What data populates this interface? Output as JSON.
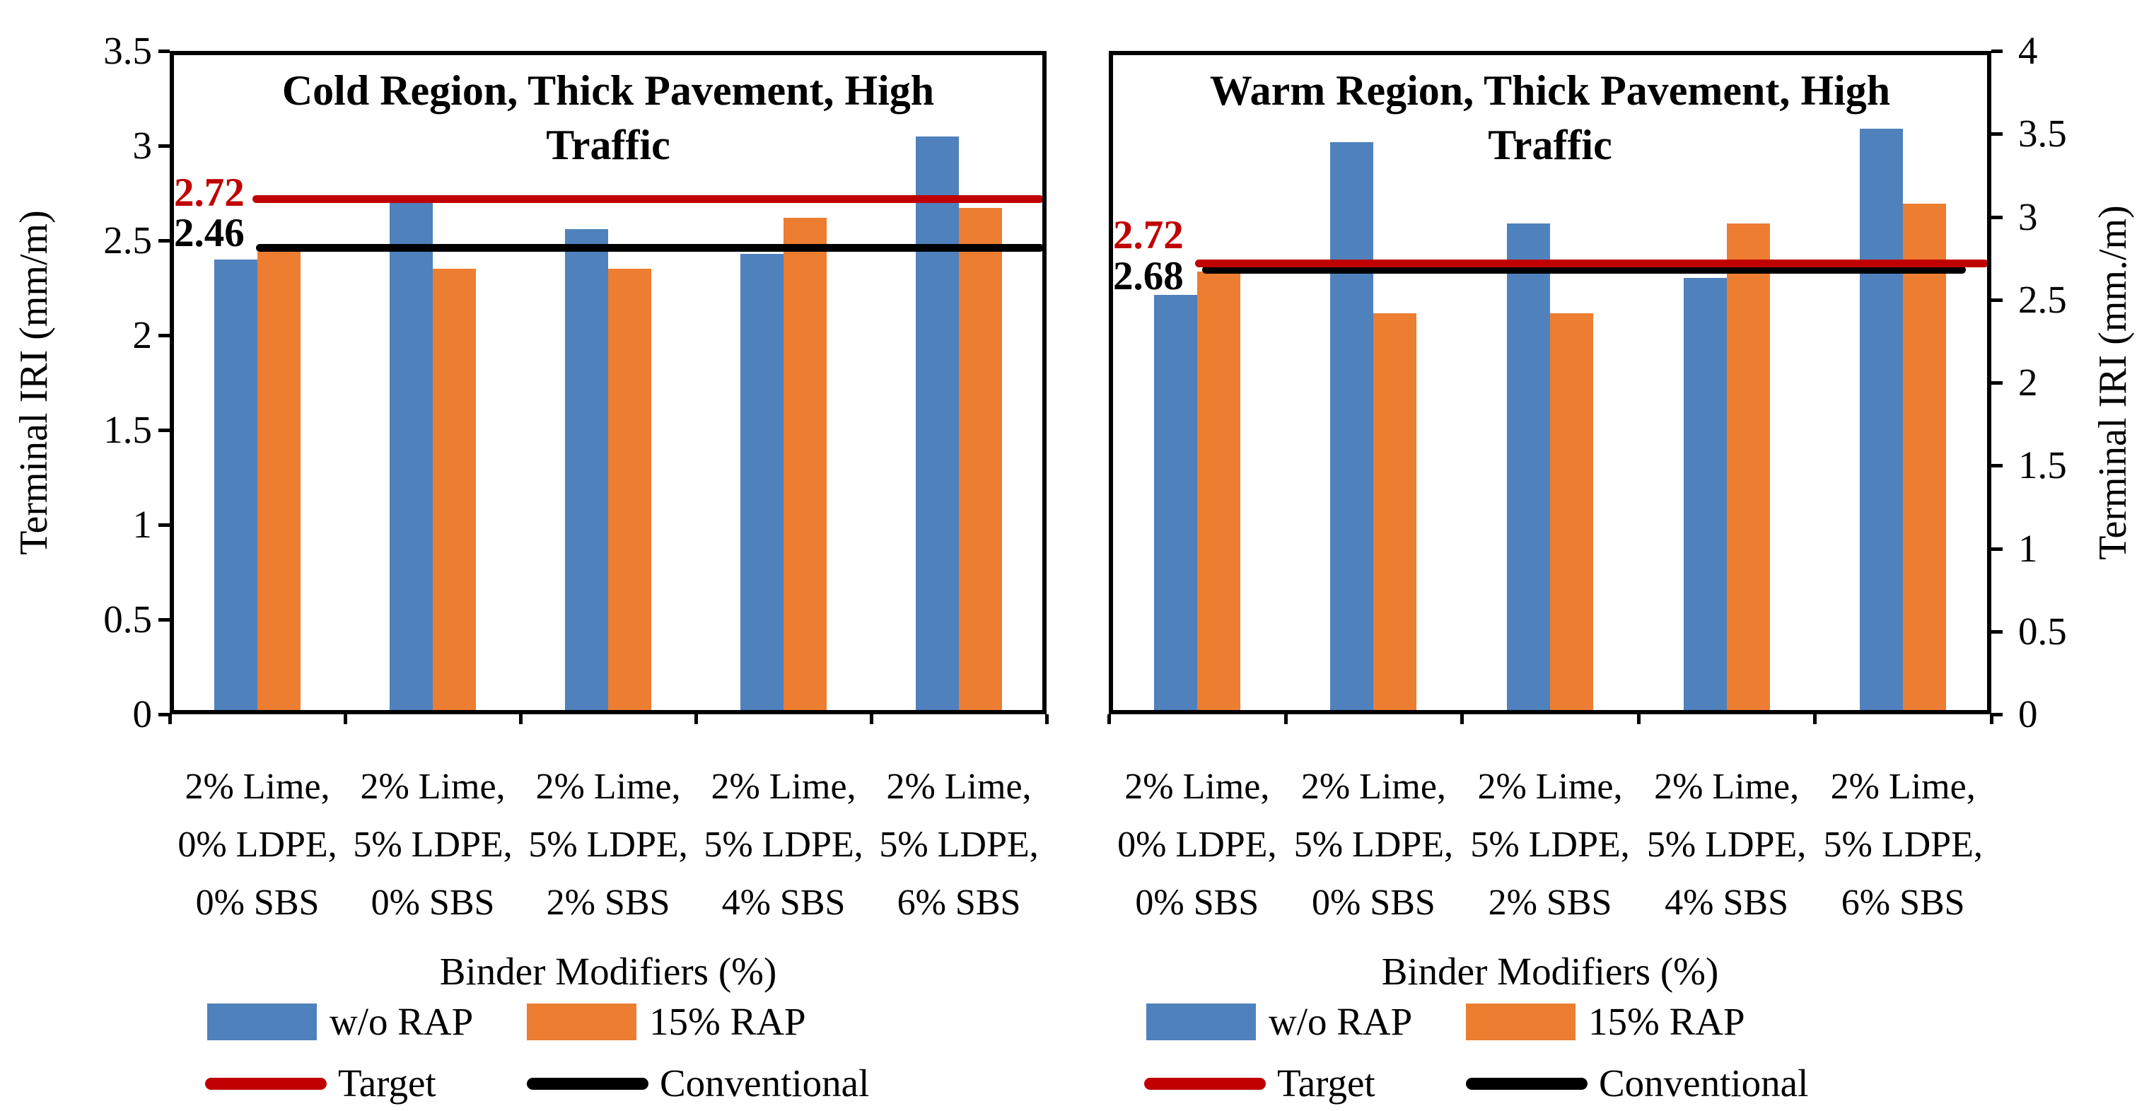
{
  "colors": {
    "blue": "#4F81BD",
    "orange": "#ED7D31",
    "red": "#C00000",
    "black": "#000000"
  },
  "legend": {
    "series": [
      {
        "label": "w/o RAP",
        "color": "blue"
      },
      {
        "label": "15% RAP",
        "color": "orange"
      }
    ],
    "lines": [
      {
        "label": "Target",
        "color": "red"
      },
      {
        "label": "Conventional",
        "color": "black"
      }
    ]
  },
  "chart_data": [
    {
      "type": "bar",
      "title": "Cold Region, Thick Pavement, High Traffic",
      "xlabel": "Binder Modifiers (%)",
      "ylabel": "Terminal IRI (mm/m)",
      "y_axis_side": "left",
      "ylim": [
        0,
        3.5
      ],
      "ytick_step": 0.5,
      "yticks": [
        "3.5",
        "3",
        "2.5",
        "2",
        "1.5",
        "1",
        "0.5",
        "0"
      ],
      "grid": false,
      "categories": [
        [
          "2% Lime,",
          "0% LDPE,",
          "0% SBS"
        ],
        [
          "2% Lime,",
          "5% LDPE,",
          "0% SBS"
        ],
        [
          "2% Lime,",
          "5% LDPE,",
          "2% SBS"
        ],
        [
          "2% Lime,",
          "5% LDPE,",
          "4% SBS"
        ],
        [
          "2% Lime,",
          "5% LDPE,",
          "6% SBS"
        ]
      ],
      "series": [
        {
          "name": "w/o RAP",
          "color": "blue",
          "values": [
            2.4,
            2.7,
            2.56,
            2.43,
            3.05
          ]
        },
        {
          "name": "15% RAP",
          "color": "orange",
          "values": [
            2.44,
            2.35,
            2.35,
            2.62,
            2.67
          ]
        }
      ],
      "reference_lines": [
        {
          "name": "Target",
          "label": "2.72",
          "value": 2.72,
          "color": "red"
        },
        {
          "name": "Conventional",
          "label": "2.46",
          "value": 2.46,
          "color": "black"
        }
      ]
    },
    {
      "type": "bar",
      "title": "Warm Region, Thick Pavement, High Traffic",
      "xlabel": "Binder Modifiers (%)",
      "ylabel": "Terminal IRI (mm./m)",
      "y_axis_side": "right",
      "ylim": [
        0,
        4
      ],
      "ytick_step": 0.5,
      "yticks": [
        "4",
        "3.5",
        "3",
        "2.5",
        "2",
        "1.5",
        "1",
        "0.5",
        "0"
      ],
      "grid": false,
      "categories": [
        [
          "2% Lime,",
          "0% LDPE,",
          "0% SBS"
        ],
        [
          "2% Lime,",
          "5% LDPE,",
          "0% SBS"
        ],
        [
          "2% Lime,",
          "5% LDPE,",
          "2% SBS"
        ],
        [
          "2% Lime,",
          "5% LDPE,",
          "4% SBS"
        ],
        [
          "2% Lime,",
          "5% LDPE,",
          "6% SBS"
        ]
      ],
      "series": [
        {
          "name": "w/o RAP",
          "color": "blue",
          "values": [
            2.53,
            3.45,
            2.96,
            2.63,
            3.53
          ]
        },
        {
          "name": "15% RAP",
          "color": "orange",
          "values": [
            2.67,
            2.42,
            2.42,
            2.96,
            3.08
          ]
        }
      ],
      "reference_lines": [
        {
          "name": "Target",
          "label": "2.72",
          "value": 2.72,
          "color": "red"
        },
        {
          "name": "Conventional",
          "label": "2.68",
          "value": 2.68,
          "color": "black"
        }
      ]
    }
  ]
}
